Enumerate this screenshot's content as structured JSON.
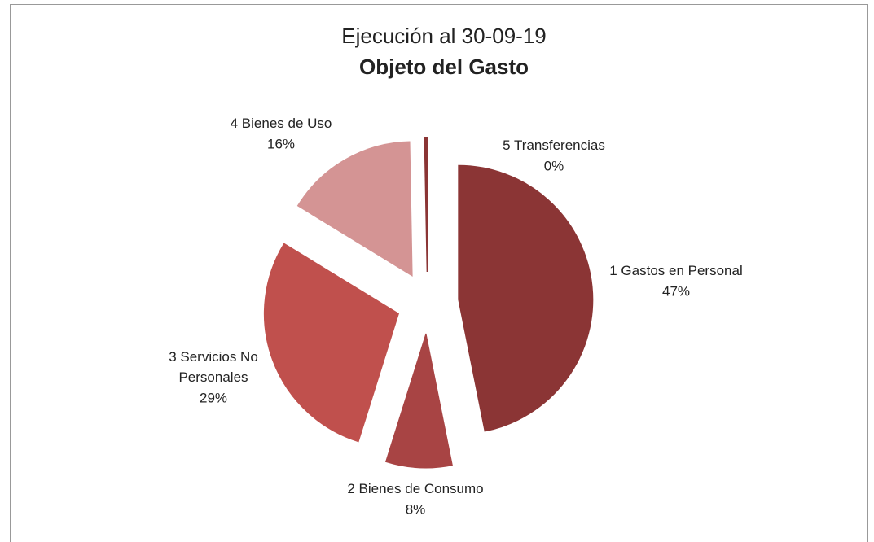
{
  "chart_data": {
    "type": "pie",
    "title": "Ejecución al 30-09-19",
    "subtitle": "Objeto del Gasto",
    "categories": [
      "1 Gastos en Personal",
      "2 Bienes de Consumo",
      "3 Servicios No Personales",
      "4 Bienes de Uso",
      "5 Transferencias"
    ],
    "values": [
      47,
      8,
      29,
      16,
      0.3
    ],
    "value_labels": [
      "47%",
      "8%",
      "29%",
      "16%",
      "0%"
    ],
    "colors": [
      "#8b3535",
      "#a84444",
      "#c0504d",
      "#d49494",
      "#8b3535"
    ]
  }
}
